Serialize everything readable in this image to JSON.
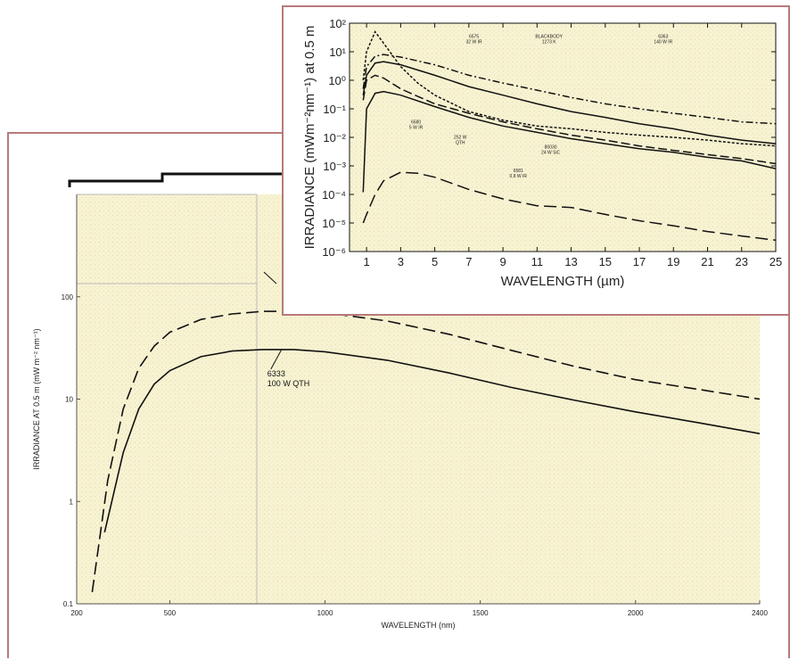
{
  "chart_data": [
    {
      "type": "line",
      "xlabel": "WAVELENGTH (nm)",
      "ylabel": "IRRADIANCE AT 0.5 m (mW m⁻² nm⁻¹)",
      "xlim": [
        200,
        2400
      ],
      "ylim": [
        0.1,
        1000
      ],
      "y_scale": "log",
      "grid": false,
      "x_ticks": [
        200,
        500,
        1000,
        1500,
        2000,
        2400
      ],
      "y_ticks": [
        {
          "v": 0.1,
          "label": "0.1"
        },
        {
          "v": 1,
          "label": "1"
        },
        {
          "v": 10,
          "label": "10"
        },
        {
          "v": 100,
          "label": "100"
        }
      ],
      "series": [
        {
          "dash": "solid",
          "x": [
            290,
            350,
            400,
            450,
            500,
            600,
            700,
            800,
            900,
            1000,
            1200,
            1400,
            1600,
            1800,
            2000,
            2200,
            2400
          ],
          "y": [
            0.5,
            3,
            8,
            14,
            19,
            26,
            29.5,
            30.5,
            30.5,
            29,
            24,
            18,
            13,
            9.8,
            7.5,
            5.9,
            4.6
          ]
        },
        {
          "dash": "dashed",
          "x": [
            250,
            300,
            350,
            400,
            450,
            500,
            600,
            700,
            800,
            900,
            1000,
            1200,
            1400,
            1600,
            1800,
            2000,
            2200,
            2400
          ],
          "y": [
            0.13,
            1.6,
            8,
            20,
            33,
            45,
            60,
            68,
            72,
            72,
            70,
            58,
            43,
            30,
            21,
            15.5,
            12.5,
            10
          ]
        }
      ],
      "annotations": [
        {
          "lines": [
            "6333",
            "100 W QTH"
          ],
          "x": 860,
          "y": 30.5
        }
      ]
    },
    {
      "type": "line",
      "xlabel": "WAVELENGTH (µm)",
      "ylabel": "IRRADIANCE (mWm⁻²nm⁻¹) at 0.5 m",
      "xlim": [
        0,
        25
      ],
      "ylim": [
        1e-06,
        100
      ],
      "y_scale": "log",
      "grid": false,
      "x_ticks": [
        1,
        3,
        5,
        7,
        9,
        11,
        13,
        15,
        17,
        19,
        21,
        23,
        25
      ],
      "y_ticks": [
        {
          "v": 1e-06,
          "label": "10⁻⁶"
        },
        {
          "v": 1e-05,
          "label": "10⁻⁵"
        },
        {
          "v": 0.0001,
          "label": "10⁻⁴"
        },
        {
          "v": 0.001,
          "label": "10⁻³"
        },
        {
          "v": 0.01,
          "label": "10⁻²"
        },
        {
          "v": 0.1,
          "label": "10⁻¹"
        },
        {
          "v": 1,
          "label": "10⁰"
        },
        {
          "v": 10,
          "label": "10¹"
        },
        {
          "v": 100,
          "label": "10²"
        }
      ],
      "series": [
        {
          "dash": "dashdot",
          "x": [
            0.8,
            1,
            1.5,
            2,
            3,
            5,
            7,
            9,
            11,
            13,
            15,
            17,
            19,
            21,
            23,
            25
          ],
          "y": [
            0.5,
            3,
            7,
            8,
            6.5,
            3.5,
            1.5,
            0.8,
            0.45,
            0.25,
            0.15,
            0.1,
            0.07,
            0.05,
            0.035,
            0.03
          ]
        },
        {
          "dash": "solid",
          "x": [
            0.8,
            1,
            1.5,
            2,
            3,
            5,
            7,
            9,
            11,
            13,
            15,
            17,
            19,
            21,
            23,
            25
          ],
          "y": [
            0.3,
            1.5,
            4,
            4.5,
            3.5,
            1.5,
            0.6,
            0.3,
            0.15,
            0.08,
            0.05,
            0.03,
            0.02,
            0.012,
            0.008,
            0.006
          ]
        },
        {
          "dash": "shortdash",
          "x": [
            0.8,
            1,
            1.5,
            2,
            3,
            4,
            5,
            7,
            9,
            11,
            13,
            15,
            17,
            19,
            21,
            23,
            25
          ],
          "y": [
            1,
            10,
            50,
            20,
            3,
            0.8,
            0.3,
            0.08,
            0.04,
            0.025,
            0.02,
            0.015,
            0.012,
            0.01,
            0.008,
            0.006,
            0.005
          ]
        },
        {
          "dash": "longdash",
          "x": [
            0.8,
            1,
            1.5,
            2,
            3,
            5,
            7,
            9,
            11,
            13,
            15,
            17,
            19,
            21,
            23,
            25
          ],
          "y": [
            0.2,
            1,
            1.5,
            1.2,
            0.5,
            0.15,
            0.07,
            0.035,
            0.02,
            0.012,
            0.008,
            0.005,
            0.0035,
            0.0025,
            0.0018,
            0.0012
          ]
        },
        {
          "dash": "solid",
          "x": [
            0.8,
            1,
            1.5,
            2,
            3,
            5,
            7,
            9,
            11,
            13,
            15,
            17,
            19,
            21,
            23,
            25
          ],
          "y": [
            0.00012,
            0.1,
            0.35,
            0.4,
            0.3,
            0.12,
            0.05,
            0.025,
            0.015,
            0.009,
            0.006,
            0.004,
            0.003,
            0.002,
            0.0015,
            0.0008
          ]
        },
        {
          "dash": "dashed",
          "x": [
            0.8,
            1,
            1.5,
            2,
            3,
            4,
            5,
            7,
            9,
            11,
            13,
            15,
            17,
            19,
            21,
            23,
            25
          ],
          "y": [
            1e-05,
            2e-05,
            0.0001,
            0.0003,
            0.0006,
            0.00055,
            0.0004,
            0.00015,
            7e-05,
            4e-05,
            3.5e-05,
            2e-05,
            1.2e-05,
            8e-06,
            5e-06,
            3.5e-06,
            2.5e-06
          ]
        }
      ],
      "annotations": [
        {
          "lines": [
            "6575",
            "32 W IR"
          ],
          "x": 7.3,
          "y": 30
        },
        {
          "lines": [
            "BLACKBODY",
            "1273 K"
          ],
          "x": 11.7,
          "y": 30
        },
        {
          "lines": [
            "6363",
            "140 W IR"
          ],
          "x": 18.4,
          "y": 30
        },
        {
          "lines": [
            "6580",
            "5 W IR"
          ],
          "x": 3.9,
          "y": 0.03
        },
        {
          "lines": [
            "252 W",
            "QTH"
          ],
          "x": 6.5,
          "y": 0.009
        },
        {
          "lines": [
            "80030",
            "24 W SiC"
          ],
          "x": 11.8,
          "y": 0.004
        },
        {
          "lines": [
            "6581",
            "0.8 W IR"
          ],
          "x": 9.9,
          "y": 0.0006
        }
      ]
    }
  ]
}
